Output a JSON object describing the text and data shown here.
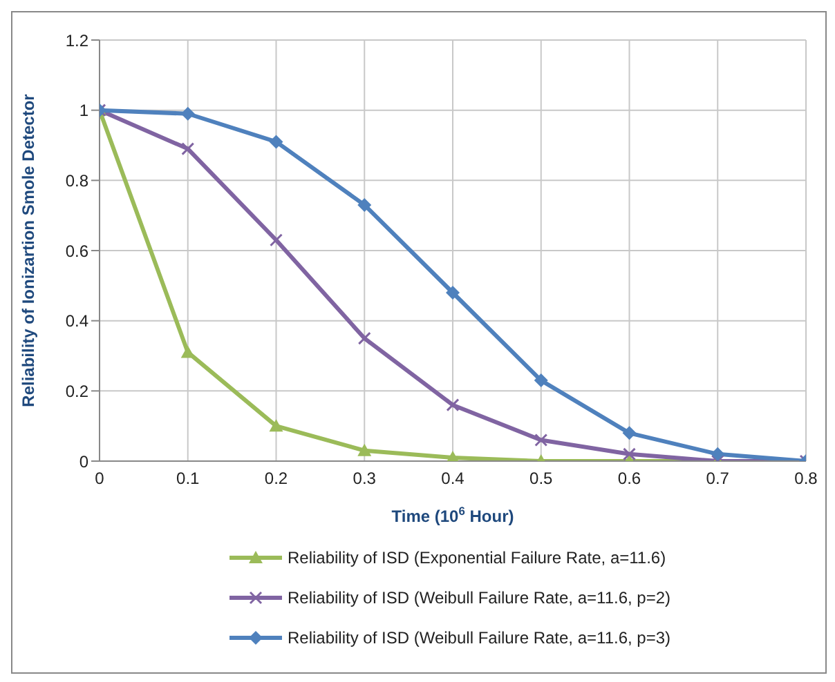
{
  "chart_data": {
    "type": "line",
    "xlabel": "Time (10$^{6}$ Hour)",
    "ylabel": "Reliability of Ionizartion Smole Detector",
    "x": [
      0,
      0.1,
      0.2,
      0.3,
      0.4,
      0.5,
      0.6,
      0.7,
      0.8
    ],
    "series": [
      {
        "name": "Reliability of ISD (Exponential Failure Rate, a=11.6)",
        "color": "#9bbb59",
        "marker": "triangle",
        "values": [
          1,
          0.31,
          0.1,
          0.03,
          0.01,
          0,
          0,
          0,
          0
        ]
      },
      {
        "name": "Reliability of ISD (Weibull Failure Rate, a=11.6, p=2)",
        "color": "#8064a2",
        "marker": "cross",
        "values": [
          1,
          0.89,
          0.63,
          0.35,
          0.16,
          0.06,
          0.02,
          0,
          0
        ]
      },
      {
        "name": "Reliability of ISD (Weibull Failure Rate, a=11.6, p=3)",
        "color": "#4f81bd",
        "marker": "diamond",
        "values": [
          1,
          0.99,
          0.91,
          0.73,
          0.48,
          0.23,
          0.08,
          0.02,
          0
        ]
      }
    ],
    "xlim": [
      0,
      0.8
    ],
    "xticks": [
      0,
      0.1,
      0.2,
      0.3,
      0.4,
      0.5,
      0.6,
      0.7,
      0.8
    ],
    "ylim": [
      0,
      1.2
    ],
    "yticks": [
      0,
      0.2,
      0.4,
      0.6,
      0.8,
      1,
      1.2
    ],
    "grid": true,
    "legend": "bottom",
    "line_style": "solid"
  }
}
